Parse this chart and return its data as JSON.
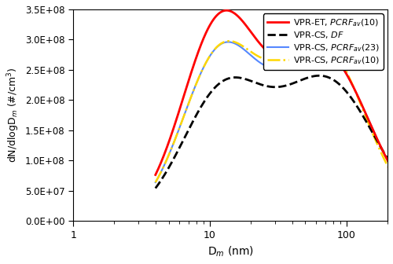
{
  "title": "",
  "xlabel": "D_m (nm)",
  "ylabel": "dN/dlogD_m (#/cm^3)",
  "xlim": [
    1,
    200
  ],
  "ylim": [
    0,
    350000000.0
  ],
  "yticks": [
    0,
    50000000.0,
    100000000.0,
    150000000.0,
    200000000.0,
    250000000.0,
    300000000.0,
    350000000.0
  ],
  "ytick_labels": [
    "0.0E+00",
    "5.0E+07",
    "1.0E+08",
    "1.5E+08",
    "2.0E+08",
    "2.5E+08",
    "3.0E+08",
    "3.5E+08"
  ],
  "legend_entries": [
    {
      "label": "VPR-ET, PCRF_av(10)",
      "color": "#FF0000",
      "linestyle": "-",
      "linewidth": 2.0
    },
    {
      "label": "VPR-CS, DF",
      "color": "#000000",
      "linestyle": "--",
      "linewidth": 2.0
    },
    {
      "label": "VPR-CS, PCRF_av(23)",
      "color": "#5588FF",
      "linestyle": "-",
      "linewidth": 1.5
    },
    {
      "label": "VPR-CS, PCRF_av(10)",
      "color": "#FFD700",
      "linestyle": "-.",
      "linewidth": 1.8
    }
  ],
  "background_color": "#FFFFFF",
  "curves": {
    "et_pcrf10": {
      "peak1_amp": 325000000.0,
      "peak1_mu": 12.0,
      "peak1_sigma": 0.28,
      "peak2_amp": 275000000.0,
      "peak2_mu": 68.0,
      "peak2_sigma": 0.33
    },
    "cs_df": {
      "peak1_amp": 210000000.0,
      "peak1_mu": 12.5,
      "peak1_sigma": 0.3,
      "peak2_amp": 230000000.0,
      "peak2_mu": 72.0,
      "peak2_sigma": 0.35
    },
    "cs_pcrf23": {
      "peak1_amp": 272000000.0,
      "peak1_mu": 12.0,
      "peak1_sigma": 0.28,
      "peak2_amp": 275000000.0,
      "peak2_mu": 68.0,
      "peak2_sigma": 0.33
    },
    "cs_pcrf10": {
      "peak1_amp": 272000000.0,
      "peak1_mu": 12.0,
      "peak1_sigma": 0.28,
      "peak2_amp": 292000000.0,
      "peak2_mu": 65.0,
      "peak2_sigma": 0.32
    }
  }
}
